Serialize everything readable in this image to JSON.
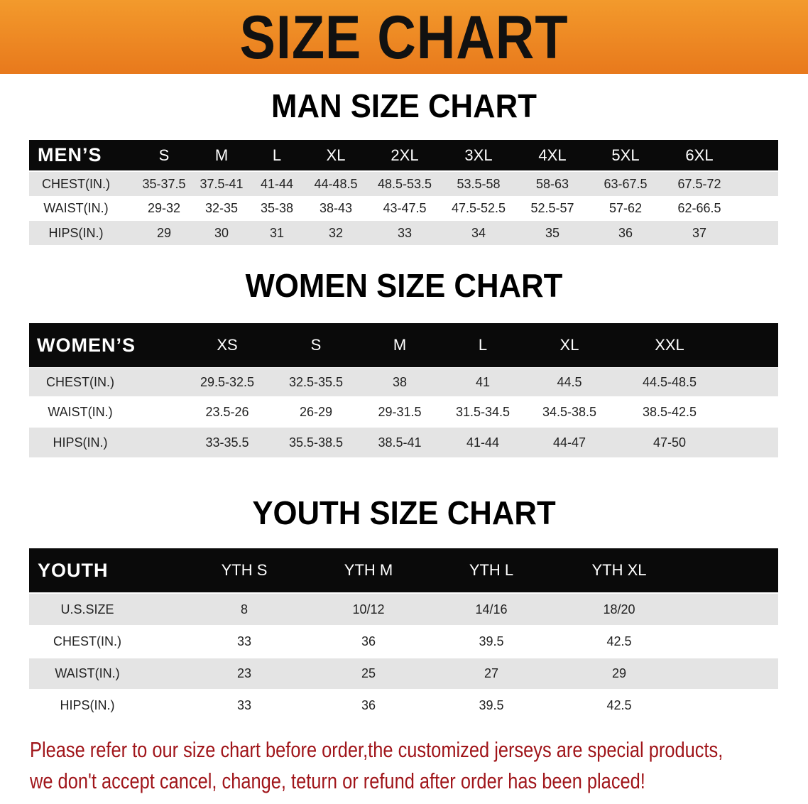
{
  "title": "SIZE CHART",
  "accent_color": "#e8791c",
  "note_color": "#a0151a",
  "men": {
    "title": "MAN SIZE CHART",
    "header": [
      "MEN’S",
      "S",
      "M",
      "L",
      "XL",
      "2XL",
      "3XL",
      "4XL",
      "5XL",
      "6XL"
    ],
    "rows": [
      [
        "CHEST(IN.)",
        "35-37.5",
        "37.5-41",
        "41-44",
        "44-48.5",
        "48.5-53.5",
        "53.5-58",
        "58-63",
        "63-67.5",
        "67.5-72"
      ],
      [
        "WAIST(IN.)",
        "29-32",
        "32-35",
        "35-38",
        "38-43",
        "43-47.5",
        "47.5-52.5",
        "52.5-57",
        "57-62",
        "62-66.5"
      ],
      [
        "HIPS(IN.)",
        "29",
        "30",
        "31",
        "32",
        "33",
        "34",
        "35",
        "36",
        "37"
      ]
    ]
  },
  "women": {
    "title": "WOMEN SIZE CHART",
    "header": [
      "WOMEN’S",
      "XS",
      "S",
      "M",
      "L",
      "XL",
      "XXL"
    ],
    "rows": [
      [
        "CHEST(IN.)",
        "29.5-32.5",
        "32.5-35.5",
        "38",
        "41",
        "44.5",
        "44.5-48.5"
      ],
      [
        "WAIST(IN.)",
        "23.5-26",
        "26-29",
        "29-31.5",
        "31.5-34.5",
        "34.5-38.5",
        "38.5-42.5"
      ],
      [
        "HIPS(IN.)",
        "33-35.5",
        "35.5-38.5",
        "38.5-41",
        "41-44",
        "44-47",
        "47-50"
      ]
    ]
  },
  "youth": {
    "title": "YOUTH SIZE CHART",
    "header": [
      "YOUTH",
      "YTH S",
      "YTH M",
      "YTH L",
      "YTH XL"
    ],
    "rows": [
      [
        "U.S.SIZE",
        "8",
        "10/12",
        "14/16",
        "18/20"
      ],
      [
        "CHEST(IN.)",
        "33",
        "36",
        "39.5",
        "42.5"
      ],
      [
        "WAIST(IN.)",
        "23",
        "25",
        "27",
        "29"
      ],
      [
        "HIPS(IN.)",
        "33",
        "36",
        "39.5",
        "42.5"
      ]
    ]
  },
  "notice": [
    "Please refer to our size chart before order,the customized jerseys are special products,",
    "we don't accept cancel, change, teturn or refund after order has been placed!"
  ]
}
